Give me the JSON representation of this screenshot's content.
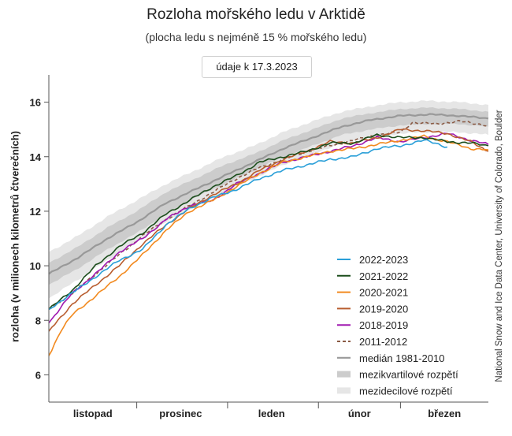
{
  "title": "Rozloha mořského ledu v Arktidě",
  "subtitle": "(plocha ledu s nejméně 15 % mořského ledu)",
  "date_note": "údaje k 17.3.2023",
  "credit": "National Snow and Ice Data Center, University of Colorado, Boulder",
  "chart_data": {
    "type": "line",
    "title": "Rozloha mořského ledu v Arktidě",
    "subtitle": "(plocha ledu s nejméně 15 % mořského ledu)",
    "ylabel": "rozloha (v milionech kilometrů čtverečních)",
    "xlabel": "",
    "x_unit": "day index from 1 November",
    "xlim": [
      0,
      150
    ],
    "ylim": [
      5,
      17
    ],
    "y_ticks": [
      6,
      8,
      10,
      12,
      14,
      16
    ],
    "x_ticks": [
      {
        "label": "listopad",
        "x": 15
      },
      {
        "label": "prosinec",
        "x": 45
      },
      {
        "label": "leden",
        "x": 76
      },
      {
        "label": "únor",
        "x": 106
      },
      {
        "label": "březen",
        "x": 135
      }
    ],
    "month_boundaries": [
      30,
      61,
      92,
      120
    ],
    "grid": false,
    "legend_position": "bottom-right",
    "colors": {
      "median": "#999999",
      "interquartile": "#cccccc",
      "interdecile": "#e6e6e6"
    },
    "median": {
      "name": "medián 1981-2010",
      "x": [
        0,
        10,
        20,
        30,
        40,
        50,
        60,
        70,
        80,
        90,
        100,
        110,
        120,
        130,
        140,
        150
      ],
      "values": [
        9.7,
        10.3,
        11.0,
        11.6,
        12.3,
        12.8,
        13.3,
        13.8,
        14.3,
        14.7,
        15.1,
        15.35,
        15.5,
        15.55,
        15.5,
        15.4
      ]
    },
    "interquartile": {
      "name": "mezikvartilové rozpětí",
      "x": [
        0,
        10,
        20,
        30,
        40,
        50,
        60,
        70,
        80,
        90,
        100,
        110,
        120,
        130,
        140,
        150
      ],
      "low": [
        9.3,
        9.9,
        10.6,
        11.2,
        11.9,
        12.5,
        13.0,
        13.5,
        14.0,
        14.4,
        14.8,
        15.0,
        15.15,
        15.2,
        15.2,
        15.1
      ],
      "high": [
        10.1,
        10.7,
        11.4,
        12.0,
        12.7,
        13.2,
        13.7,
        14.1,
        14.6,
        15.0,
        15.4,
        15.6,
        15.75,
        15.8,
        15.75,
        15.65
      ]
    },
    "interdecile": {
      "name": "mezidecilové rozpětí",
      "x": [
        0,
        10,
        20,
        30,
        40,
        50,
        60,
        70,
        80,
        90,
        100,
        110,
        120,
        130,
        140,
        150
      ],
      "low": [
        8.8,
        9.5,
        10.2,
        10.9,
        11.6,
        12.2,
        12.7,
        13.2,
        13.7,
        14.1,
        14.5,
        14.7,
        14.85,
        14.9,
        14.9,
        14.8
      ],
      "high": [
        10.5,
        11.1,
        11.8,
        12.4,
        13.0,
        13.5,
        14.0,
        14.4,
        14.9,
        15.3,
        15.65,
        15.85,
        16.0,
        16.05,
        16.0,
        15.9
      ]
    },
    "series": [
      {
        "name": "2022-2023",
        "color": "#2a9fd8",
        "dashed": false,
        "x": [
          0,
          8,
          16,
          24,
          32,
          40,
          48,
          56,
          64,
          72,
          80,
          88,
          96,
          104,
          112,
          120,
          128,
          132,
          136
        ],
        "values": [
          8.4,
          9.0,
          9.6,
          10.2,
          10.6,
          11.5,
          12.1,
          12.5,
          12.8,
          13.2,
          13.5,
          13.7,
          13.9,
          14.0,
          14.3,
          14.4,
          14.6,
          14.5,
          14.35
        ]
      },
      {
        "name": "2021-2022",
        "color": "#1b4d1b",
        "dashed": false,
        "x": [
          0,
          8,
          16,
          24,
          32,
          40,
          48,
          56,
          64,
          72,
          80,
          88,
          96,
          104,
          112,
          120,
          128,
          136,
          144,
          150
        ],
        "values": [
          8.4,
          9.1,
          10.0,
          10.7,
          11.2,
          11.9,
          12.4,
          12.9,
          13.3,
          13.8,
          14.0,
          14.2,
          14.5,
          14.5,
          14.8,
          14.7,
          14.7,
          14.55,
          14.5,
          14.4
        ]
      },
      {
        "name": "2020-2021",
        "color": "#f28a1f",
        "dashed": false,
        "x": [
          0,
          4,
          8,
          16,
          24,
          32,
          40,
          48,
          56,
          64,
          72,
          80,
          88,
          96,
          104,
          112,
          120,
          128,
          136,
          144,
          150
        ],
        "values": [
          6.7,
          7.6,
          8.2,
          8.9,
          9.6,
          10.4,
          11.3,
          12.0,
          12.4,
          12.9,
          13.4,
          13.8,
          14.0,
          14.2,
          14.3,
          14.45,
          14.6,
          14.75,
          14.55,
          14.3,
          14.25
        ]
      },
      {
        "name": "2019-2020",
        "color": "#b85c2e",
        "dashed": false,
        "x": [
          0,
          8,
          16,
          24,
          32,
          40,
          48,
          56,
          64,
          72,
          80,
          88,
          96,
          104,
          112,
          120,
          128,
          136,
          144,
          150
        ],
        "values": [
          7.6,
          8.6,
          9.3,
          10.0,
          10.8,
          11.5,
          12.1,
          12.6,
          13.0,
          13.5,
          13.9,
          14.2,
          14.55,
          14.5,
          14.7,
          15.0,
          14.95,
          14.85,
          14.55,
          14.2
        ]
      },
      {
        "name": "2018-2019",
        "color": "#a018b0",
        "dashed": false,
        "x": [
          0,
          8,
          16,
          24,
          32,
          40,
          48,
          56,
          64,
          72,
          80,
          88,
          96,
          104,
          112,
          120,
          128,
          136,
          144,
          150
        ],
        "values": [
          7.9,
          9.0,
          9.7,
          10.5,
          11.0,
          11.7,
          12.2,
          12.4,
          13.0,
          13.4,
          13.8,
          14.0,
          14.2,
          14.4,
          14.7,
          14.55,
          14.7,
          14.85,
          14.6,
          14.45
        ]
      },
      {
        "name": "2011-2012",
        "color": "#8a5a44",
        "dashed": true,
        "x": [
          0,
          8,
          16,
          24,
          32,
          40,
          48,
          56,
          64,
          72,
          80,
          88,
          96,
          104,
          112,
          120,
          124,
          132,
          140,
          150
        ],
        "values": [
          8.4,
          9.0,
          9.7,
          10.4,
          11.1,
          11.7,
          12.2,
          12.7,
          13.2,
          13.6,
          13.9,
          14.2,
          14.4,
          14.6,
          14.8,
          14.9,
          15.25,
          15.2,
          15.3,
          15.15
        ]
      }
    ]
  }
}
